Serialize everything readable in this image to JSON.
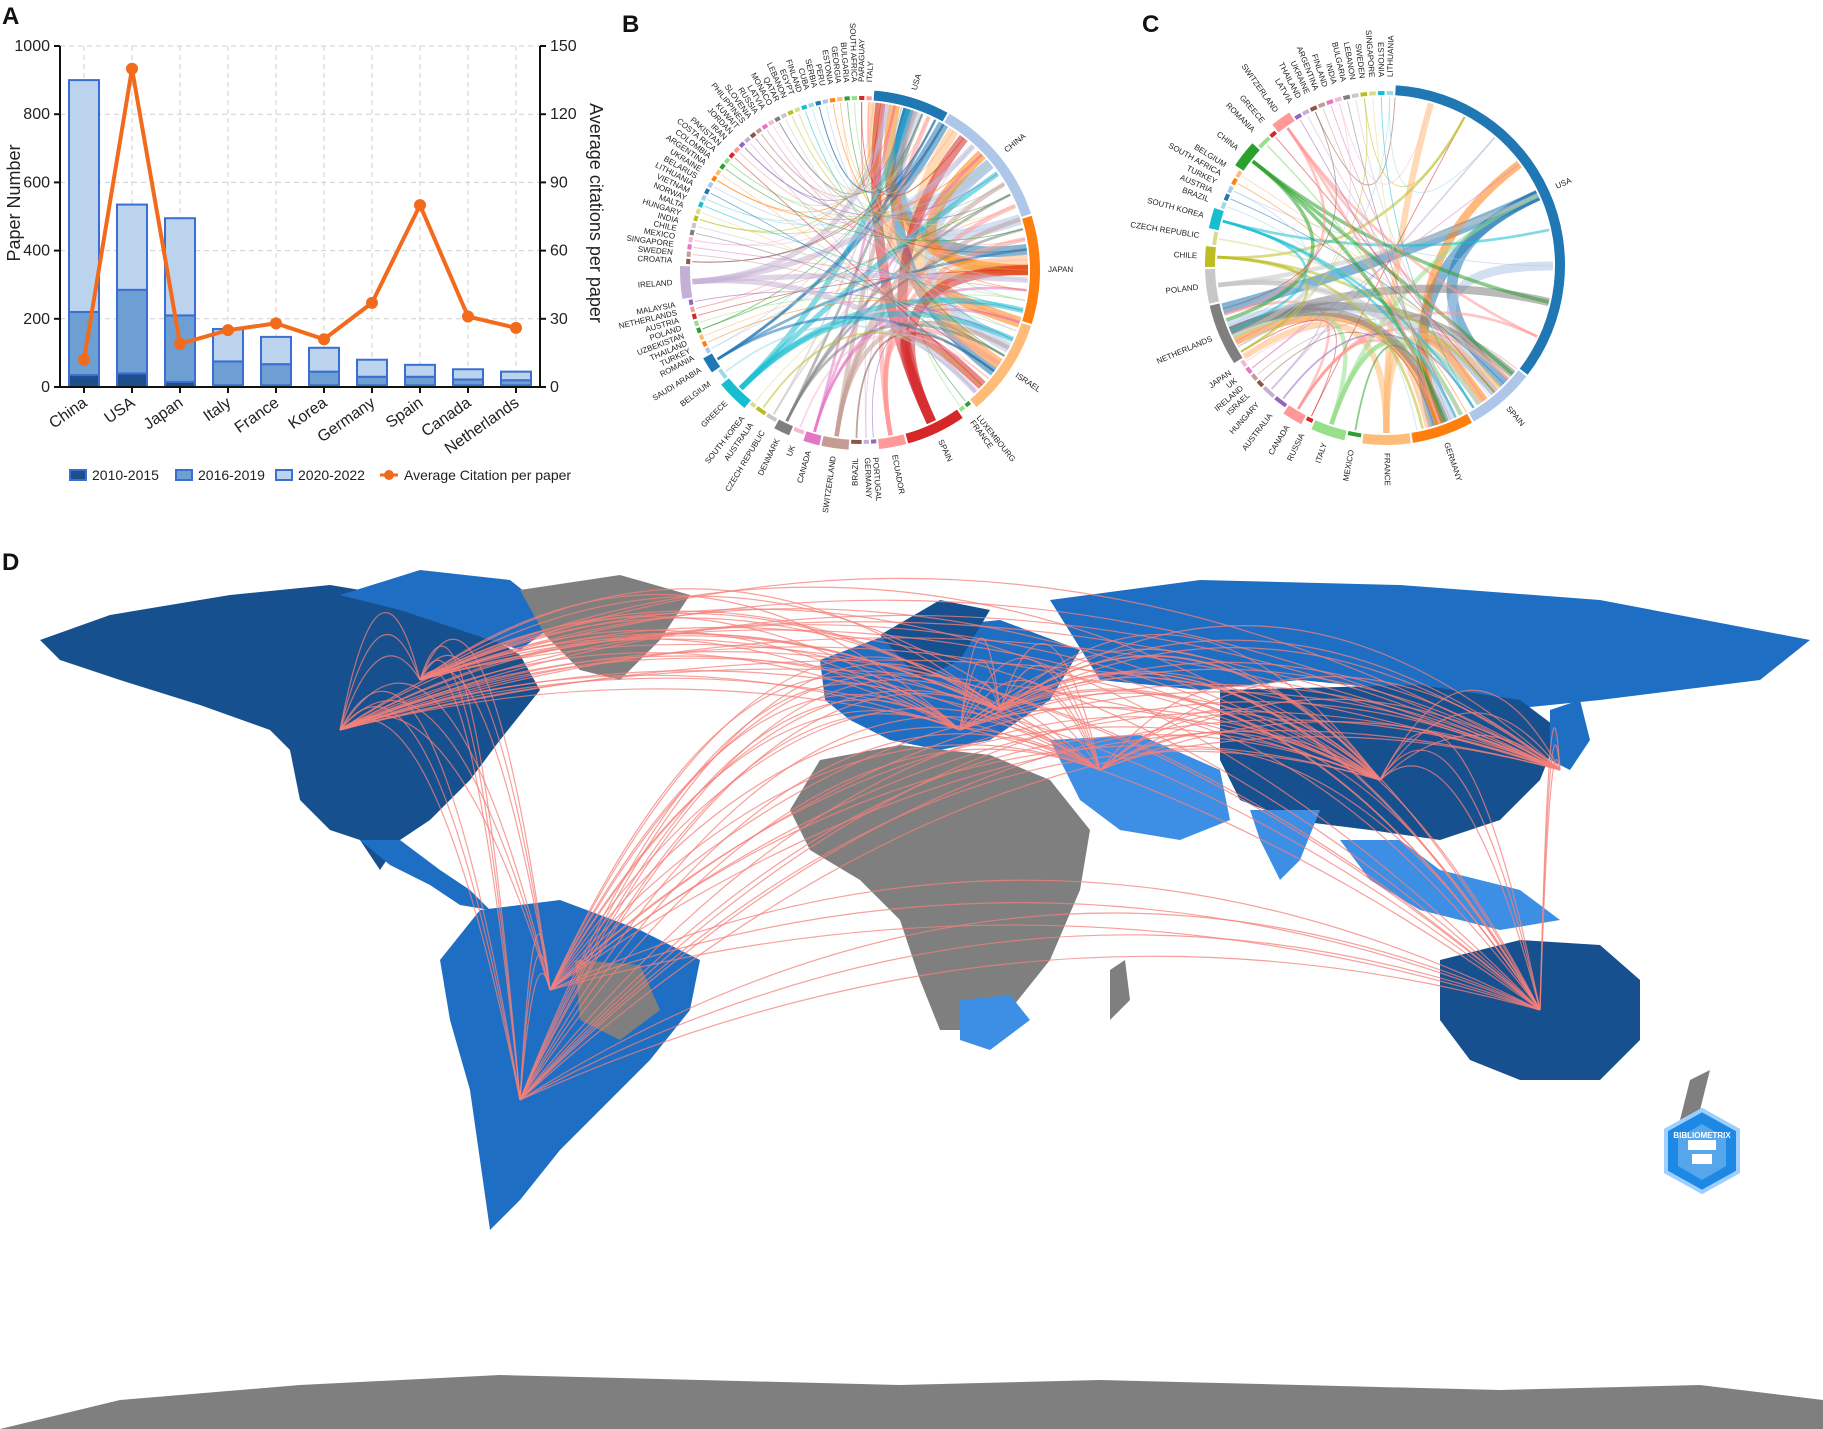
{
  "panels": {
    "a": "A",
    "b": "B",
    "c": "C",
    "d": "D"
  },
  "chart_data": [
    {
      "id": "A",
      "type": "bar",
      "stacked": true,
      "categories": [
        "China",
        "USA",
        "Japan",
        "Italy",
        "France",
        "Korea",
        "Germany",
        "Spain",
        "Canada",
        "Netherlands"
      ],
      "series": [
        {
          "name": "2010-2015",
          "color": "#1d4f8c",
          "values": [
            35,
            40,
            15,
            5,
            5,
            5,
            5,
            5,
            5,
            5
          ]
        },
        {
          "name": "2016-2019",
          "color": "#6d9fd2",
          "values": [
            185,
            245,
            195,
            70,
            62,
            40,
            25,
            25,
            17,
            15
          ]
        },
        {
          "name": "2020-2022",
          "color": "#bcd3ee",
          "values": [
            680,
            250,
            285,
            95,
            80,
            70,
            50,
            35,
            30,
            25
          ]
        }
      ],
      "line": {
        "name": "Average Citation per paper",
        "color": "#f26b1d",
        "values": [
          12,
          140,
          19,
          25,
          28,
          21,
          37,
          80,
          31,
          26
        ]
      },
      "bar_edge_color": "#3a6fd1",
      "ylabel": "Paper Number",
      "y2label": "Average citations per paper",
      "ylim": [
        0,
        1000
      ],
      "y2lim": [
        0,
        150
      ],
      "yticks": [
        "0",
        "200",
        "400",
        "600",
        "800",
        "1000"
      ],
      "y2ticks": [
        "0",
        "30",
        "60",
        "90",
        "120",
        "150"
      ],
      "grid": "dashed",
      "legend_position": "bottom"
    },
    {
      "id": "B",
      "type": "chord",
      "labels": [
        "USA",
        "CHINA",
        "JAPAN",
        "ISRAEL",
        "LUXEMBOURG",
        "FRANCE",
        "SPAIN",
        "ECUADOR",
        "PORTUGAL",
        "GERMANY",
        "BRAZIL",
        "SWITZERLAND",
        "CANADA",
        "UK",
        "DENMARK",
        "CZECH REPUBLIC",
        "AUSTRALIA",
        "SOUTH KOREA",
        "GREECE",
        "BELGIUM",
        "SAUDI ARABIA",
        "ROMANIA",
        "TURKEY",
        "THAILAND",
        "UZBEKISTAN",
        "POLAND",
        "AUSTRIA",
        "NETHERLANDS",
        "MALAYSIA",
        "IRELAND",
        "CROATIA",
        "SWEDEN",
        "SINGAPORE",
        "MEXICO",
        "CHILE",
        "INDIA",
        "HUNGARY",
        "MALTA",
        "NORWAY",
        "VIETNAM",
        "LITHUANIA",
        "BELARUS",
        "UKRAINE",
        "ARGENTINA",
        "COLOMBIA",
        "COSTA RICA",
        "PAKISTAN",
        "IRAN",
        "JORDAN",
        "KUWAIT",
        "PHILIPPINES",
        "SLOVENIA",
        "RUSSIA",
        "LATVIA",
        "MONACO",
        "QATAR",
        "LEBANON",
        "EGYPT",
        "FINLAND",
        "CUBA",
        "SERBIA",
        "PERU",
        "ESTONIA",
        "GEORGIA",
        "BULGARIA",
        "SOUTH AFRICA",
        "PARAGUAY",
        "ITALY"
      ],
      "weights": [
        14,
        24,
        20,
        18,
        1,
        1,
        11,
        5,
        1,
        1,
        2,
        5,
        3,
        2,
        3,
        2,
        2,
        1,
        6,
        2,
        3,
        1,
        1,
        1,
        1,
        1,
        1,
        1,
        1,
        6,
        1,
        1,
        1,
        1,
        1,
        1,
        1,
        1,
        1,
        1,
        1,
        1,
        1,
        1,
        1,
        1,
        1,
        1,
        1,
        1,
        1,
        1,
        1,
        1,
        1,
        1,
        1,
        1,
        1,
        1,
        1,
        1,
        1,
        1,
        1,
        1,
        1,
        1
      ],
      "colors": [
        "#1f77b4",
        "#aec7e8",
        "#ff7f0e",
        "#ffbb78",
        "#2ca02c",
        "#98df8a",
        "#d62728",
        "#ff9896",
        "#9467bd",
        "#c5b0d5",
        "#8c564b",
        "#c49c94",
        "#e377c2",
        "#f7b6d2",
        "#7f7f7f",
        "#c7c7c7",
        "#bcbd22",
        "#dbdb8d",
        "#17becf",
        "#9edae5"
      ]
    },
    {
      "id": "C",
      "type": "chord",
      "labels": [
        "USA",
        "SPAIN",
        "GERMANY",
        "FRANCE",
        "MEXICO",
        "ITALY",
        "RUSSIA",
        "CANADA",
        "AUSTRALIA",
        "HUNGARY",
        "ISRAEL",
        "IRELAND",
        "UK",
        "JAPAN",
        "NETHERLANDS",
        "POLAND",
        "CHILE",
        "CZECH REPUBLIC",
        "SOUTH KOREA",
        "BRAZIL",
        "AUSTRIA",
        "TURKEY",
        "SOUTH AFRICA",
        "BELGIUM",
        "CHINA",
        "ROMANIA",
        "GREECE",
        "SWITZERLAND",
        "LATVIA",
        "THAILAND",
        "UKRAINE",
        "ARGENTINA",
        "FINLAND",
        "INDIA",
        "BULGARIA",
        "LEBANON",
        "SWEDEN",
        "SINGAPORE",
        "ESTONIA",
        "LITHUANIA"
      ],
      "weights": [
        56,
        10,
        9,
        7,
        2,
        5,
        1,
        3,
        2,
        2,
        1,
        1,
        1,
        1,
        9,
        5,
        3,
        2,
        3,
        1,
        1,
        1,
        1,
        1,
        4,
        2,
        1,
        3,
        1,
        1,
        1,
        1,
        1,
        1,
        1,
        1,
        1,
        1,
        1,
        1
      ],
      "colors": [
        "#1f77b4",
        "#aec7e8",
        "#ff7f0e",
        "#ffbb78",
        "#2ca02c",
        "#98df8a",
        "#d62728",
        "#ff9896",
        "#9467bd",
        "#c5b0d5",
        "#8c564b",
        "#c49c94",
        "#e377c2",
        "#f7b6d2",
        "#7f7f7f",
        "#c7c7c7",
        "#bcbd22",
        "#dbdb8d",
        "#17becf",
        "#9edae5"
      ]
    },
    {
      "id": "D",
      "type": "map",
      "logo_text": "BIBLIOMETRIX",
      "colors": {
        "high": "#17508f",
        "mid": "#1e6fc4",
        "low": "#3d8fe6",
        "nodata": "#7f7f7f",
        "links": "#f4807a"
      }
    }
  ]
}
